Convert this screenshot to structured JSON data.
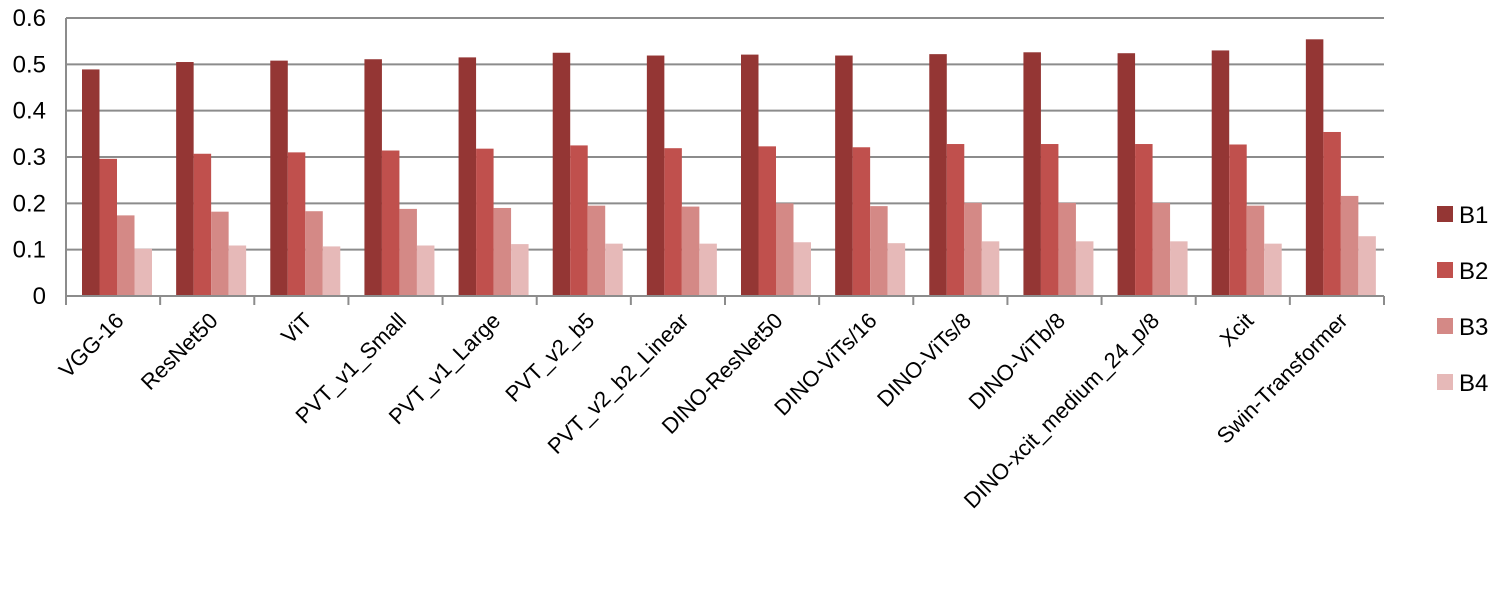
{
  "chart_data": {
    "type": "bar",
    "title": "",
    "xlabel": "",
    "ylabel": "",
    "ylim": [
      0,
      0.6
    ],
    "y_ticks": [
      "0",
      "0.1",
      "0.2",
      "0.3",
      "0.4",
      "0.5",
      "0.6"
    ],
    "grid": true,
    "legend_position": "right",
    "categories": [
      "VGG-16",
      "ResNet50",
      "ViT",
      "PVT_v1_Small",
      "PVT_v1_Large",
      "PVT_v2_b5",
      "PVT_v2_b2_Linear",
      "DINO-ResNet50",
      "DINO-ViTs/16",
      "DINO-ViTs/8",
      "DINO-ViTb/8",
      "DINO-xcit_medium_24_p/8",
      "Xcit",
      "Swin-Transformer"
    ],
    "series": [
      {
        "name": "B1",
        "color": "#943634",
        "values": [
          0.489,
          0.505,
          0.508,
          0.511,
          0.515,
          0.525,
          0.519,
          0.521,
          0.519,
          0.522,
          0.526,
          0.524,
          0.53,
          0.554
        ]
      },
      {
        "name": "B2",
        "color": "#c0504d",
        "values": [
          0.296,
          0.307,
          0.31,
          0.314,
          0.318,
          0.325,
          0.319,
          0.323,
          0.321,
          0.328,
          0.328,
          0.328,
          0.327,
          0.354
        ]
      },
      {
        "name": "B3",
        "color": "#d48986",
        "values": [
          0.174,
          0.182,
          0.183,
          0.188,
          0.19,
          0.195,
          0.193,
          0.2,
          0.194,
          0.201,
          0.201,
          0.201,
          0.195,
          0.216
        ]
      },
      {
        "name": "B4",
        "color": "#e6b9b8",
        "values": [
          0.102,
          0.109,
          0.107,
          0.109,
          0.112,
          0.113,
          0.113,
          0.116,
          0.114,
          0.118,
          0.118,
          0.118,
          0.113,
          0.129
        ]
      }
    ]
  }
}
